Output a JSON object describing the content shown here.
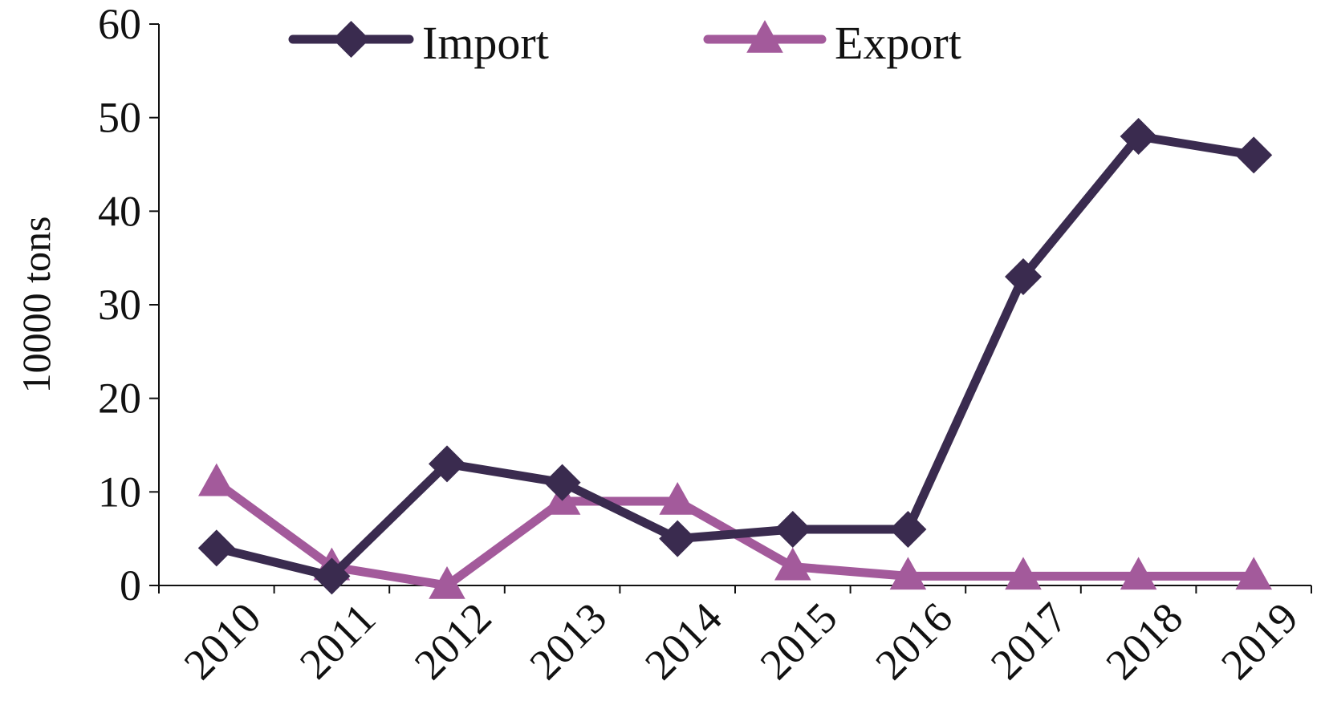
{
  "chart_data": {
    "type": "line",
    "title": "",
    "xlabel": "",
    "ylabel": "10000 tons",
    "categories": [
      "2010",
      "2011",
      "2012",
      "2013",
      "2014",
      "2015",
      "2016",
      "2017",
      "2018",
      "2019"
    ],
    "ylim": [
      0,
      60
    ],
    "yticks": [
      "0",
      "10",
      "20",
      "30",
      "40",
      "50",
      "60"
    ],
    "grid": false,
    "legend": "top",
    "series": [
      {
        "name": "Import",
        "marker": "diamond",
        "color": "#3a2b4f",
        "values": [
          4,
          1,
          13,
          11,
          5,
          6,
          6,
          33,
          48,
          46
        ]
      },
      {
        "name": "Export",
        "marker": "triangle",
        "color": "#a35a9b",
        "values": [
          11,
          2,
          0,
          9,
          9,
          2,
          1,
          1,
          1,
          1
        ]
      }
    ]
  }
}
